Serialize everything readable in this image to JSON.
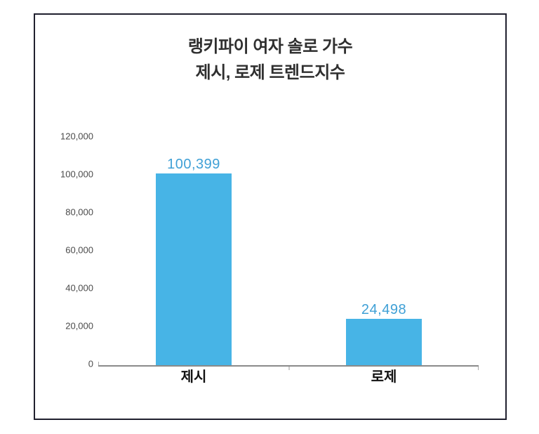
{
  "chart_data": {
    "type": "bar",
    "title_lines": [
      "랭키파이 여자 솔로 가수",
      "제시, 로제 트렌드지수"
    ],
    "categories": [
      "제시",
      "로제"
    ],
    "values": [
      100399,
      24498
    ],
    "values_formatted": [
      "100,399",
      "24,498"
    ],
    "ylim": [
      0,
      120000
    ],
    "ytick_interval": 20000,
    "yticks": [
      0,
      20000,
      40000,
      60000,
      80000,
      100000,
      120000
    ],
    "ytick_labels": [
      "0",
      "20,000",
      "40,000",
      "60,000",
      "80,000",
      "100,000",
      "120,000"
    ],
    "grid": "off",
    "legend": "none",
    "xlabel": "",
    "ylabel": "",
    "bar_color": "#47B4E6",
    "value_label_color": "#3FA0D6"
  }
}
